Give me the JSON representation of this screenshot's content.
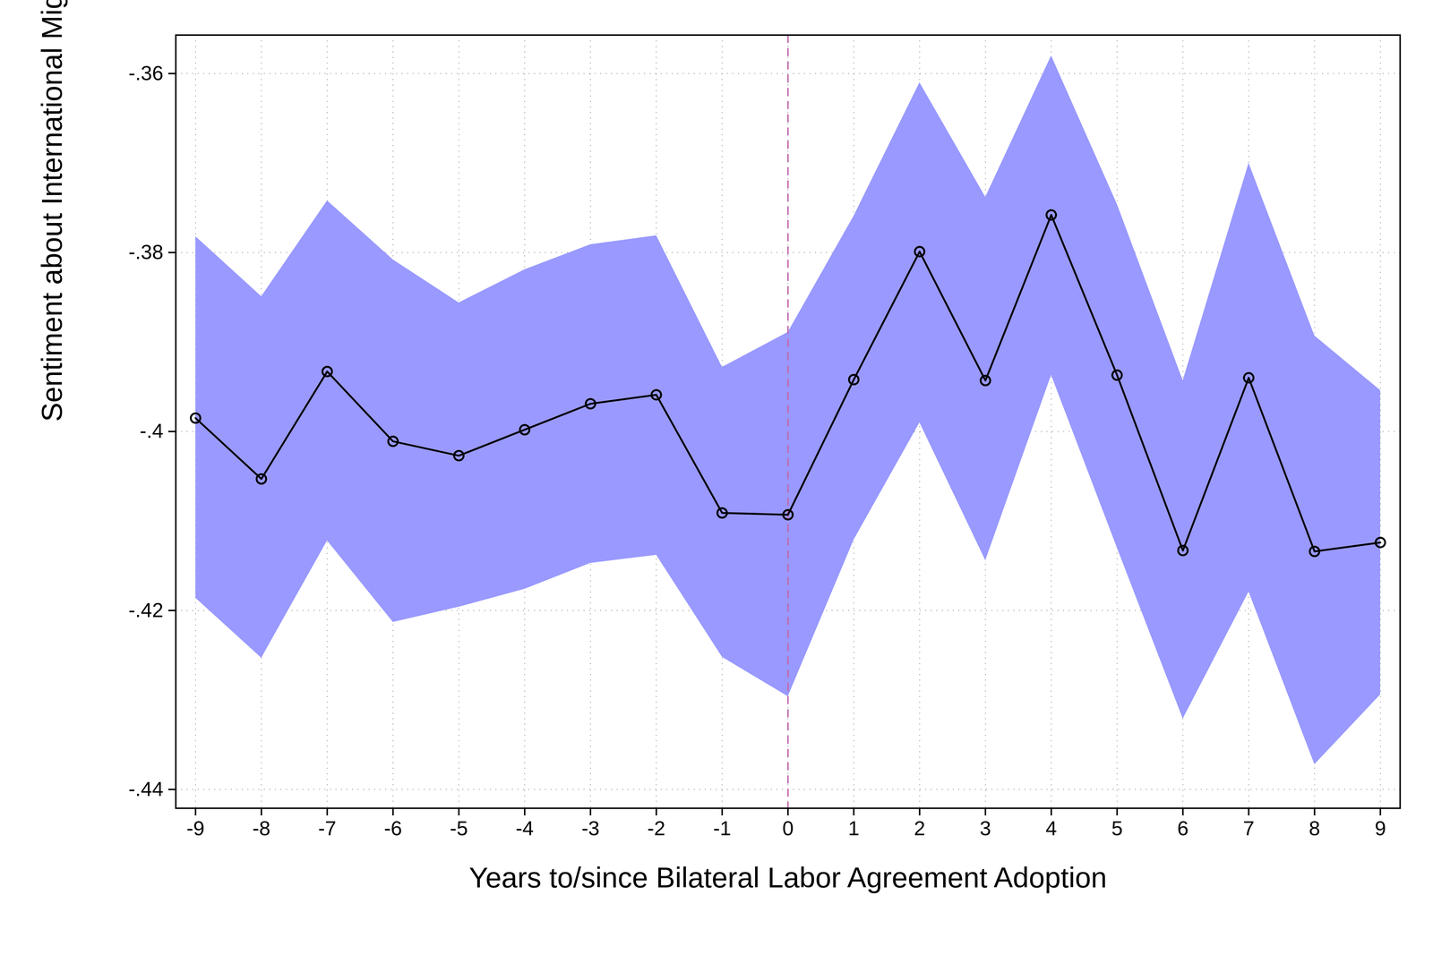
{
  "chart_data": {
    "type": "line",
    "x_label": "Years to/since Bilateral Labor Agreement Adoption",
    "y_label": "Sentiment about International Migration",
    "x": [
      -9,
      -8,
      -7,
      -6,
      -5,
      -4,
      -3,
      -2,
      -1,
      0,
      1,
      2,
      3,
      4,
      5,
      6,
      7,
      8,
      9
    ],
    "values": [
      -0.3985,
      -0.4053,
      -0.3933,
      -0.4011,
      -0.4027,
      -0.3998,
      -0.3969,
      -0.3959,
      -0.4091,
      -0.4093,
      -0.3942,
      -0.3799,
      -0.3943,
      -0.3758,
      -0.3937,
      -0.4133,
      -0.394,
      -0.4134,
      -0.4124
    ],
    "ci": {
      "lower": [
        -0.4186,
        -0.4253,
        -0.4122,
        -0.4213,
        -0.4196,
        -0.4176,
        -0.4147,
        -0.4138,
        -0.4252,
        -0.4296,
        -0.4121,
        -0.399,
        -0.4144,
        -0.3937,
        -0.413,
        -0.4321,
        -0.4179,
        -0.4372,
        -0.4294
      ],
      "upper": [
        -0.3782,
        -0.3849,
        -0.3742,
        -0.3808,
        -0.3856,
        -0.3819,
        -0.3791,
        -0.3781,
        -0.3928,
        -0.3889,
        -0.3759,
        -0.361,
        -0.3738,
        -0.358,
        -0.3746,
        -0.3943,
        -0.37,
        -0.3893,
        -0.3954
      ],
      "color": "#9999ff"
    },
    "color": "#000000",
    "marker": "circle",
    "reference_line": {
      "x": 0,
      "color": "#c36aae",
      "line_style": "dashed"
    },
    "xlim": [
      -9.3,
      9.3
    ],
    "xticks": [
      -9,
      -8,
      -7,
      -6,
      -5,
      -4,
      -3,
      -2,
      -1,
      0,
      1,
      2,
      3,
      4,
      5,
      6,
      7,
      8,
      9
    ],
    "ylim": [
      -0.4421,
      -0.3557
    ],
    "yticks": [
      {
        "value": -0.44,
        "label": "-.44"
      },
      {
        "value": -0.42,
        "label": "-.42"
      },
      {
        "value": -0.4,
        "label": "-.4"
      },
      {
        "value": -0.38,
        "label": "-.38"
      },
      {
        "value": -0.36,
        "label": "-.36"
      }
    ],
    "grid": true
  }
}
